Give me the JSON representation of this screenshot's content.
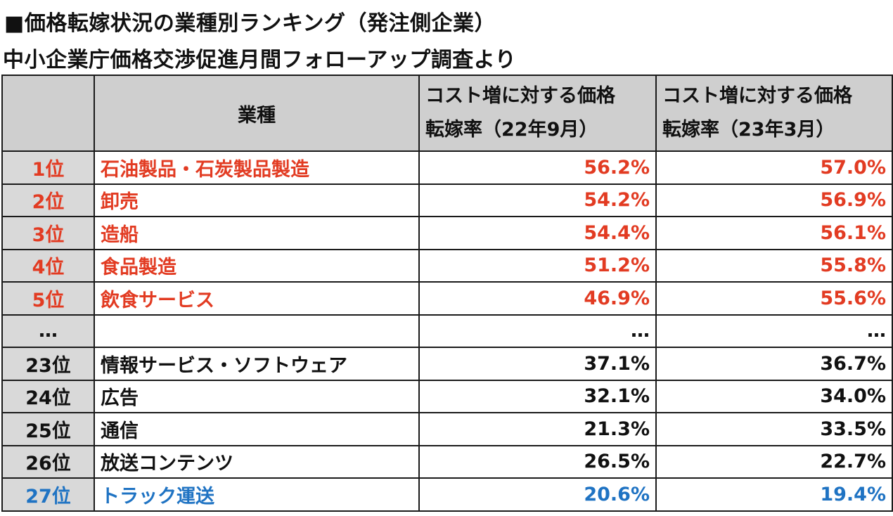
{
  "header": {
    "title": "■価格転嫁状況の業種別ランキング（発注側企業）",
    "subtitle": "中小企業庁価格交渉促進月間フォローアップ調査より"
  },
  "table": {
    "columns": {
      "rank": "",
      "industry": "業種",
      "rate_2022_line1": "コスト増に対する価格",
      "rate_2022_line2": "転嫁率（22年9月）",
      "rate_2023_line1": "コスト増に対する価格",
      "rate_2023_line2": "転嫁率（23年3月）"
    },
    "rows": [
      {
        "rank": "1位",
        "industry": "石油製品・石炭製品製造",
        "rate_2022": "56.2%",
        "rate_2023": "57.0%"
      },
      {
        "rank": "2位",
        "industry": "卸売",
        "rate_2022": "54.2%",
        "rate_2023": "56.9%"
      },
      {
        "rank": "3位",
        "industry": "造船",
        "rate_2022": "54.4%",
        "rate_2023": "56.1%"
      },
      {
        "rank": "4位",
        "industry": "食品製造",
        "rate_2022": "51.2%",
        "rate_2023": "55.8%"
      },
      {
        "rank": "5位",
        "industry": "飲食サービス",
        "rate_2022": "46.9%",
        "rate_2023": "55.6%"
      },
      {
        "rank": "…",
        "industry": "",
        "rate_2022": "…",
        "rate_2023": "…"
      },
      {
        "rank": "23位",
        "industry": "情報サービス・ソフトウェア",
        "rate_2022": "37.1%",
        "rate_2023": "36.7%"
      },
      {
        "rank": "24位",
        "industry": "広告",
        "rate_2022": "32.1%",
        "rate_2023": "34.0%"
      },
      {
        "rank": "25位",
        "industry": "通信",
        "rate_2022": "21.3%",
        "rate_2023": "33.5%"
      },
      {
        "rank": "26位",
        "industry": "放送コンテンツ",
        "rate_2022": "26.5%",
        "rate_2023": "22.7%"
      },
      {
        "rank": "27位",
        "industry": "トラック運送",
        "rate_2022": "20.6%",
        "rate_2023": "19.4%"
      }
    ]
  },
  "colors": {
    "top_rank_text": "#e23b22",
    "bottom_rank_text": "#1f73c3",
    "header_bg": "#cfcfcf",
    "rank_cell_bg": "#d9d9d9"
  }
}
